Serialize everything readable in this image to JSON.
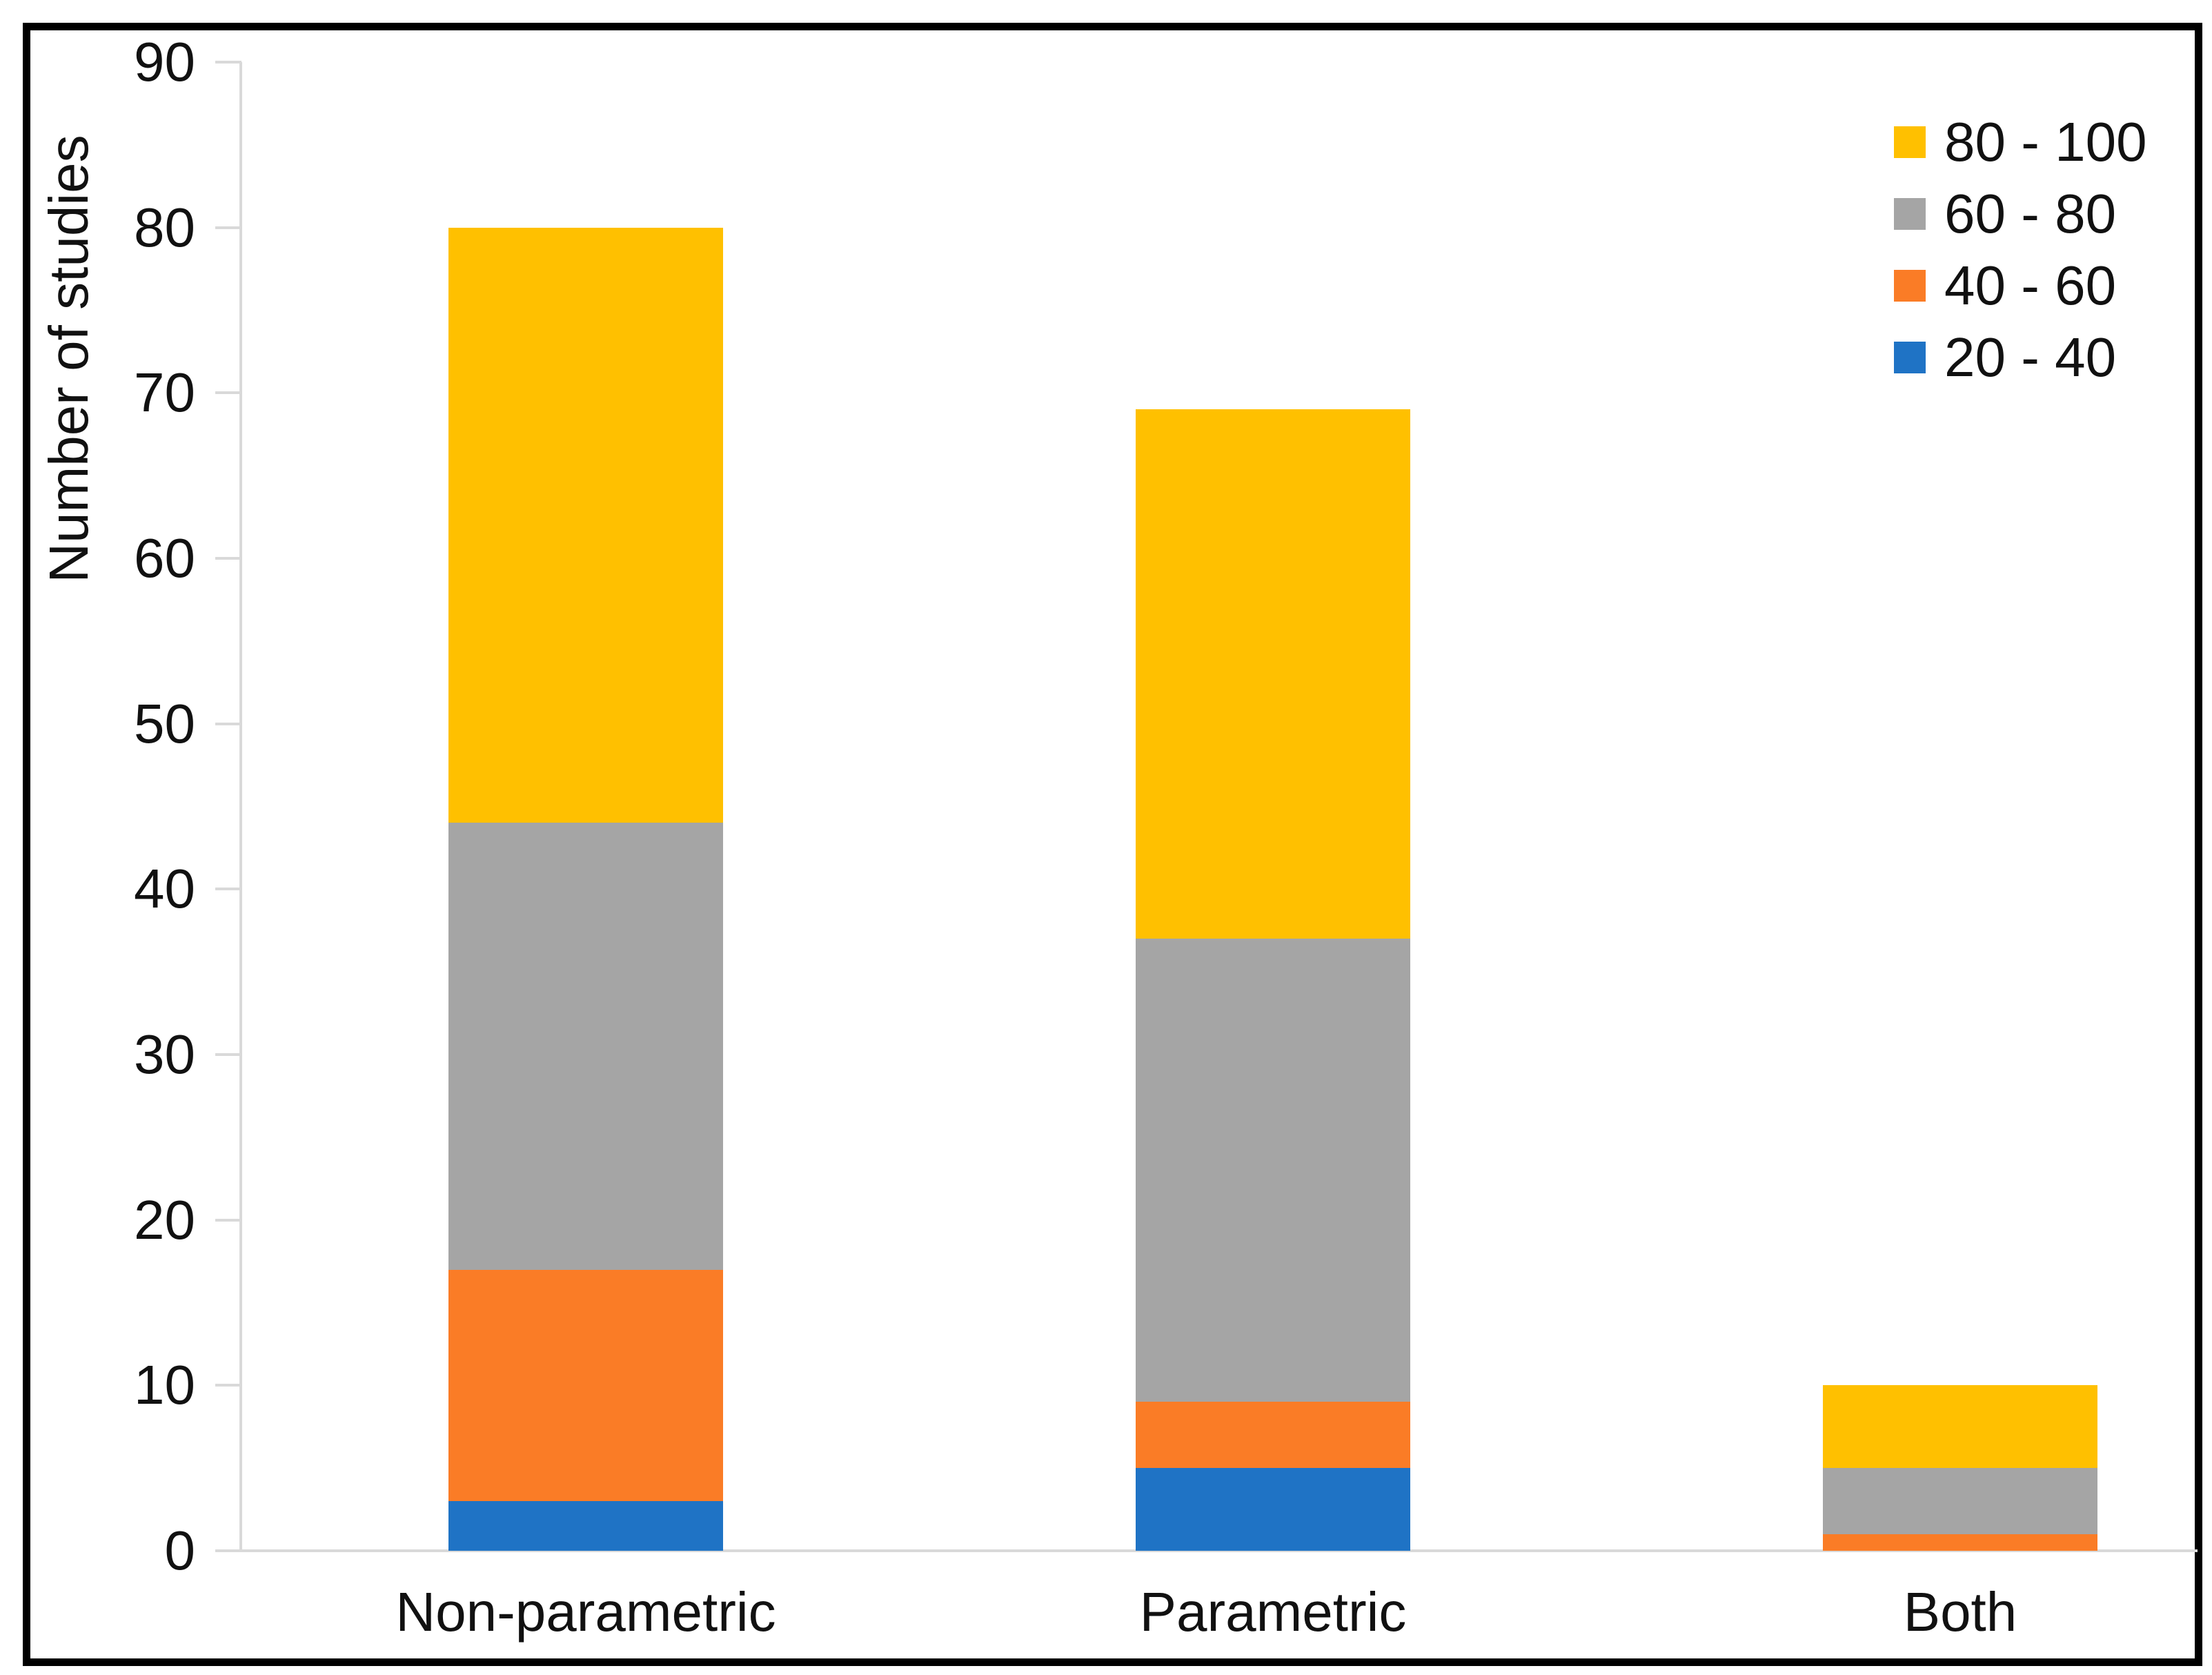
{
  "chart_data": {
    "type": "bar",
    "stacked": true,
    "categories": [
      "Non-parametric",
      "Parametric",
      "Both"
    ],
    "series": [
      {
        "name": "20 - 40",
        "color": "#1F73C5",
        "values": [
          3,
          5,
          0
        ]
      },
      {
        "name": "40 - 60",
        "color": "#FA7C26",
        "values": [
          14,
          4,
          1
        ]
      },
      {
        "name": "60 - 80",
        "color": "#A5A5A5",
        "values": [
          27,
          28,
          4
        ]
      },
      {
        "name": "80 - 100",
        "color": "#FFC000",
        "values": [
          36,
          32,
          5
        ]
      }
    ],
    "stack_totals": [
      80,
      69,
      10
    ],
    "ylabel": "Number of studies",
    "xlabel": "",
    "ylim": [
      0,
      90
    ],
    "yticks": [
      0,
      10,
      20,
      30,
      40,
      50,
      60,
      70,
      80,
      90
    ],
    "legend_order": [
      "80 - 100",
      "60 - 80",
      "40 - 60",
      "20 - 40"
    ],
    "legend_position": "top-right",
    "grid": false,
    "axis_line_color": "#D9D9D9",
    "text_color": "#111111",
    "frame_color": "#000000",
    "background": "#FFFFFF"
  }
}
